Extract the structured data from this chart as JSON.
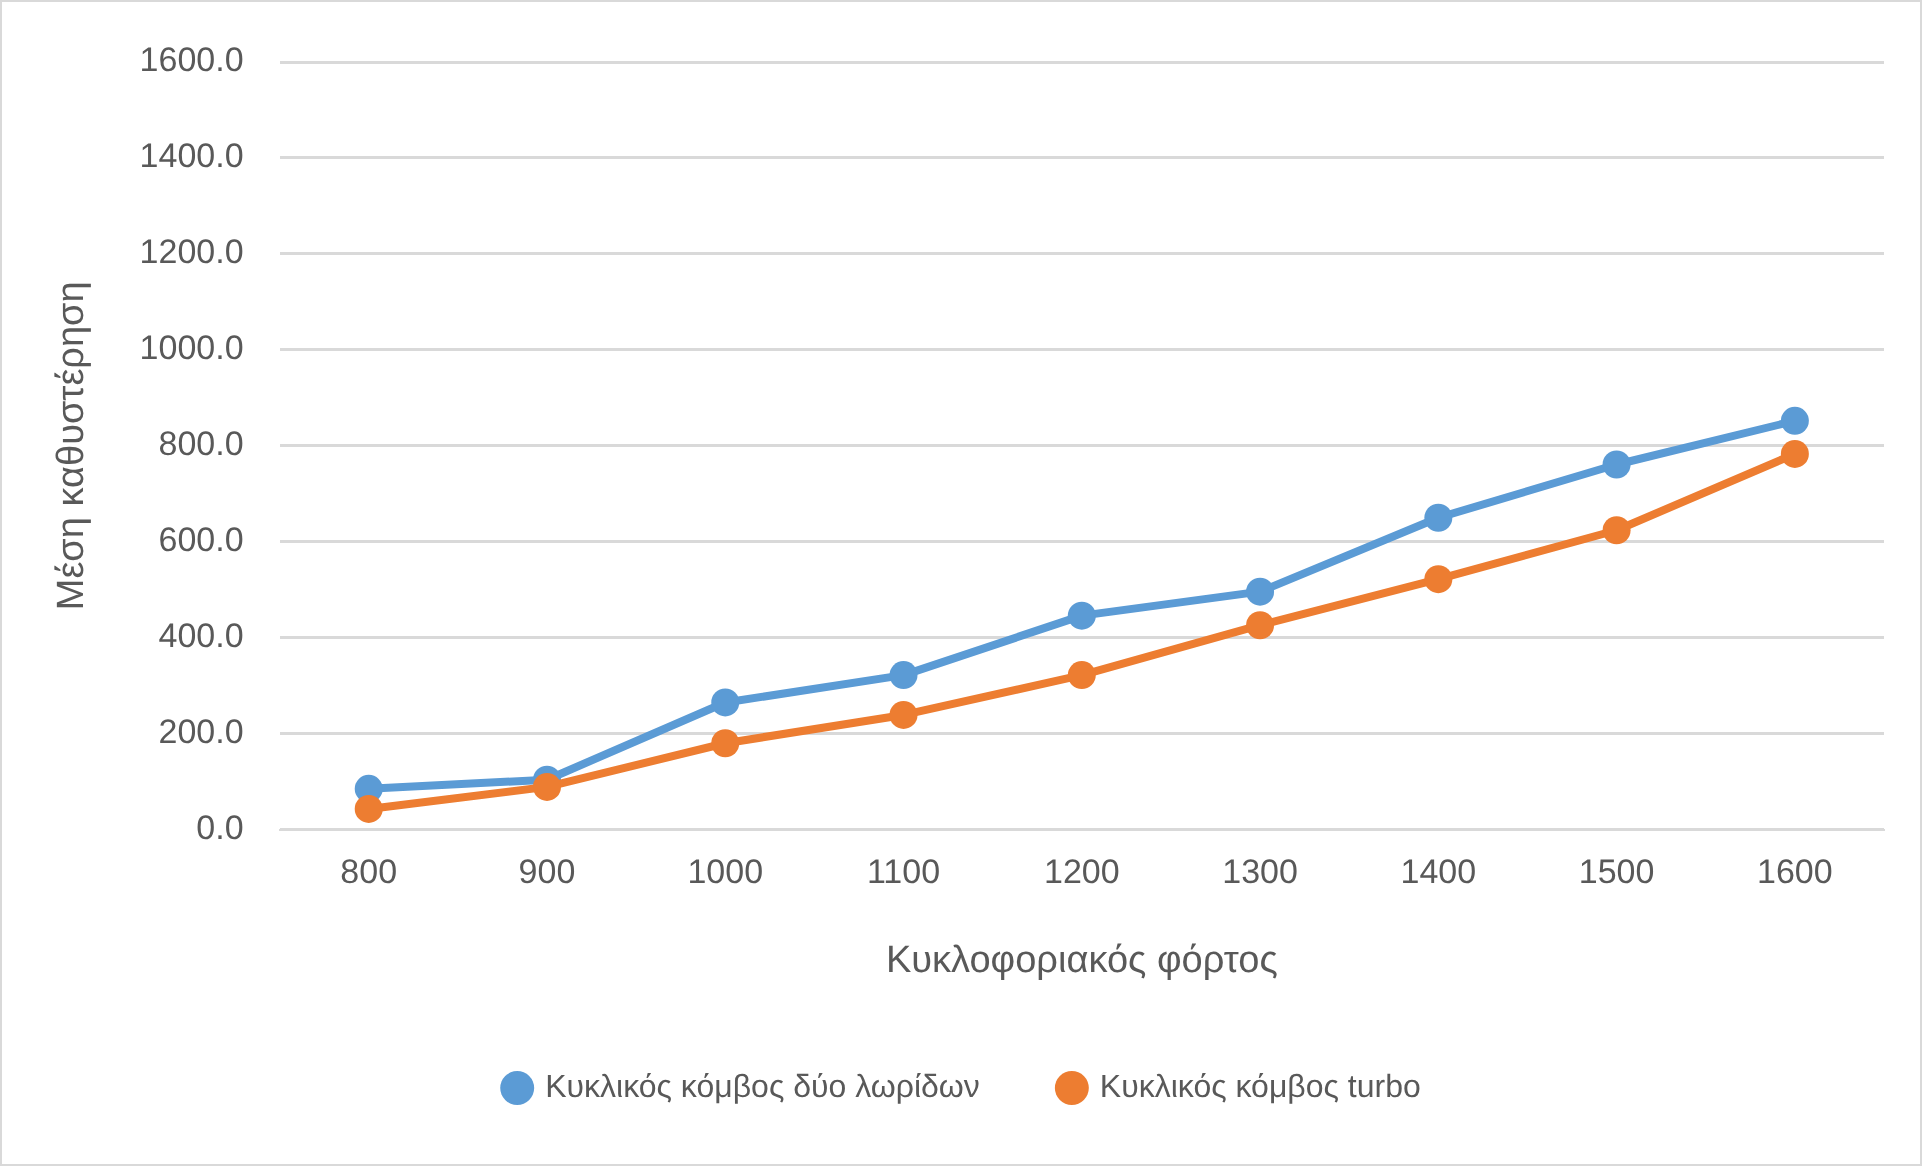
{
  "chart_data": {
    "type": "line",
    "xlabel": "Κυκλοφοριακός φόρτος",
    "ylabel": "Μέση καθυστέρηση",
    "categories": [
      "800",
      "900",
      "1000",
      "1100",
      "1200",
      "1300",
      "1400",
      "1500",
      "1600"
    ],
    "series": [
      {
        "name": "Κυκλικός κόμβος δύο λωρίδων",
        "color": "#5b9bd5",
        "values": [
          85,
          104,
          265,
          322,
          446,
          496,
          650,
          761,
          852
        ]
      },
      {
        "name": "Κυκλικός κόμβος turbo",
        "color": "#ed7d31",
        "values": [
          43,
          89,
          180,
          239,
          322,
          426,
          522,
          624,
          783
        ]
      }
    ],
    "ylim": [
      0,
      1600
    ],
    "yticks": [
      {
        "value": 0,
        "label": "0.0"
      },
      {
        "value": 200,
        "label": "200.0"
      },
      {
        "value": 400,
        "label": "400.0"
      },
      {
        "value": 600,
        "label": "600.0"
      },
      {
        "value": 800,
        "label": "800.0"
      },
      {
        "value": 1000,
        "label": "1000.0"
      },
      {
        "value": 1200,
        "label": "1200.0"
      },
      {
        "value": 1400,
        "label": "1400.0"
      },
      {
        "value": 1600,
        "label": "1600.0"
      }
    ],
    "grid": "y",
    "legend": "bottom",
    "marker": "circle",
    "line_style": "solid"
  }
}
